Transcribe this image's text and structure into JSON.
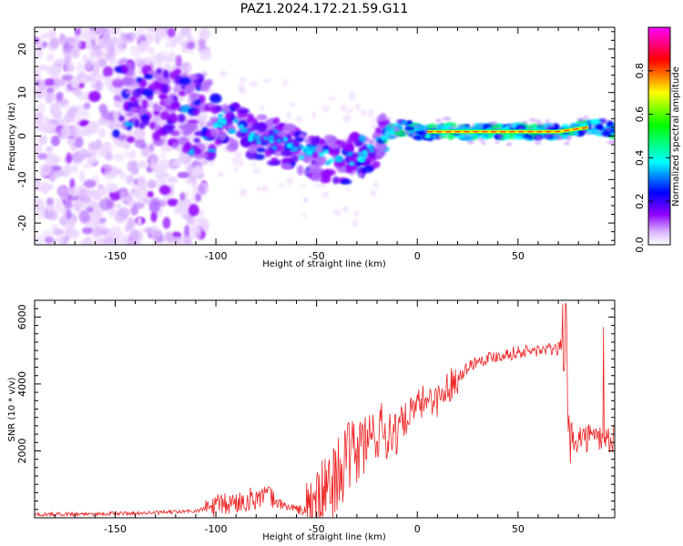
{
  "figure": {
    "title": "PAZ1.2024.172.21.59.G11"
  },
  "chart_data": [
    {
      "type": "heatmap",
      "id": "spectrogram",
      "xlabel": "Height of straight line (km)",
      "ylabel": "Frequency (Hz)",
      "xlim": [
        -190,
        98
      ],
      "ylim": [
        -25,
        25
      ],
      "xticks": [
        -150,
        -100,
        -50,
        0,
        50
      ],
      "yticks": [
        -20,
        -10,
        0,
        10,
        20
      ],
      "colorbar": {
        "label": "Normalized spectral amplitude",
        "range": [
          0,
          1
        ],
        "ticks": [
          "0.0",
          "0.2",
          "0.4",
          "0.6",
          "0.8"
        ],
        "colormap": [
          "#ffffff",
          "#8f00ff",
          "#0000ff",
          "#00ffff",
          "#00ff00",
          "#ffff00",
          "#ff0000",
          "#ff00ff"
        ]
      },
      "ridge": {
        "x": [
          -145,
          -120,
          -105,
          -95,
          -85,
          -75,
          -65,
          -55,
          -45,
          -38,
          -30,
          -22,
          -15,
          -5,
          0,
          10,
          30,
          50,
          70,
          85,
          92,
          98
        ],
        "y": [
          8,
          6,
          4,
          3,
          1,
          -1,
          -2,
          -4,
          -5,
          -6,
          -5,
          -3,
          1,
          2,
          1,
          1,
          1,
          1,
          1,
          2,
          2,
          1
        ]
      }
    },
    {
      "type": "line",
      "id": "snr",
      "xlabel": "Height of straight line (km)",
      "ylabel": "SNR (10 * v/v)",
      "xlim": [
        -190,
        98
      ],
      "ylim": [
        0,
        6500
      ],
      "xticks": [
        -150,
        -100,
        -50,
        0,
        50
      ],
      "yticks": [
        2000,
        4000,
        6000
      ],
      "color": "#ee2222",
      "series": [
        {
          "x": [
            -190,
            -160,
            -130,
            -110,
            -100,
            -90,
            -80,
            -75,
            -70,
            -60,
            -55,
            -50,
            -45,
            -40,
            -35,
            -30,
            -25,
            -20,
            -15,
            -10,
            -5,
            0,
            5,
            10,
            15,
            20,
            25,
            30,
            40,
            50,
            60,
            70,
            72,
            74,
            75,
            78,
            85,
            92,
            95,
            98
          ],
          "y": [
            100,
            120,
            150,
            200,
            350,
            450,
            600,
            700,
            450,
            250,
            200,
            400,
            800,
            1300,
            1700,
            2000,
            2300,
            2600,
            2500,
            2700,
            3000,
            3300,
            3600,
            3500,
            3900,
            4200,
            4500,
            4700,
            4850,
            4950,
            5000,
            5050,
            5200,
            5300,
            2500,
            2400,
            2400,
            2400,
            2300,
            2400
          ]
        }
      ]
    }
  ]
}
